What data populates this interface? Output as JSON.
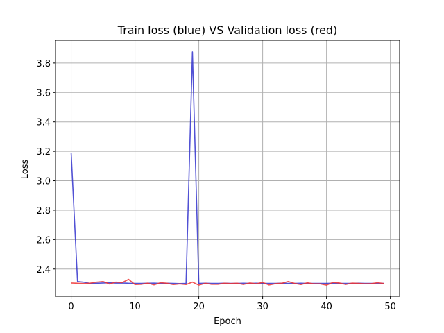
{
  "chart_data": {
    "type": "line",
    "title": "Train loss (blue) VS Validation loss (red)",
    "xlabel": "Epoch",
    "ylabel": "Loss",
    "xlim": [
      -2.45,
      51.45
    ],
    "ylim": [
      2.215,
      3.955
    ],
    "xticks": [
      0,
      10,
      20,
      30,
      40,
      50
    ],
    "yticks": [
      2.4,
      2.6,
      2.8,
      3.0,
      3.2,
      3.4,
      3.6,
      3.8
    ],
    "grid": true,
    "x": [
      0,
      1,
      2,
      3,
      4,
      5,
      6,
      7,
      8,
      9,
      10,
      11,
      12,
      13,
      14,
      15,
      16,
      17,
      18,
      19,
      20,
      21,
      22,
      23,
      24,
      25,
      26,
      27,
      28,
      29,
      30,
      31,
      32,
      33,
      34,
      35,
      36,
      37,
      38,
      39,
      40,
      41,
      42,
      43,
      44,
      45,
      46,
      47,
      48,
      49
    ],
    "series": [
      {
        "color": "#3333cc",
        "values": [
          3.19,
          2.315,
          2.31,
          2.302,
          2.303,
          2.305,
          2.306,
          2.304,
          2.305,
          2.303,
          2.302,
          2.302,
          2.303,
          2.304,
          2.302,
          2.303,
          2.302,
          2.301,
          2.302,
          3.875,
          2.302,
          2.303,
          2.302,
          2.302,
          2.303,
          2.302,
          2.302,
          2.303,
          2.302,
          2.303,
          2.302,
          2.302,
          2.302,
          2.303,
          2.302,
          2.302,
          2.303,
          2.302,
          2.302,
          2.302,
          2.302,
          2.303,
          2.302,
          2.302,
          2.302,
          2.303,
          2.302,
          2.302,
          2.302,
          2.302
        ]
      },
      {
        "color": "#ee3333",
        "values": [
          2.305,
          2.303,
          2.301,
          2.304,
          2.311,
          2.315,
          2.298,
          2.311,
          2.308,
          2.33,
          2.294,
          2.296,
          2.304,
          2.292,
          2.307,
          2.303,
          2.294,
          2.299,
          2.294,
          2.311,
          2.29,
          2.303,
          2.296,
          2.296,
          2.303,
          2.301,
          2.303,
          2.295,
          2.305,
          2.299,
          2.309,
          2.291,
          2.3,
          2.303,
          2.315,
          2.302,
          2.294,
          2.306,
          2.299,
          2.299,
          2.29,
          2.309,
          2.305,
          2.295,
          2.304,
          2.302,
          2.299,
          2.3,
          2.307,
          2.301
        ]
      }
    ]
  }
}
